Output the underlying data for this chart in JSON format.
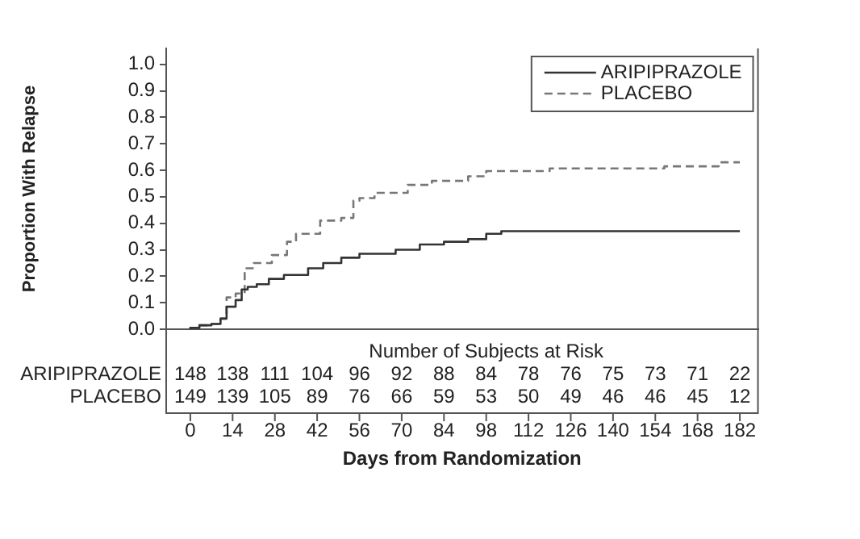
{
  "chart_data": {
    "type": "step",
    "xlabel": "Days from Randomization",
    "ylabel": "Proportion With Relapse",
    "xlim": [
      -8,
      188
    ],
    "xticks": [
      0,
      14,
      28,
      42,
      56,
      70,
      84,
      98,
      112,
      126,
      140,
      154,
      168,
      182
    ],
    "ylim": [
      0,
      1.06
    ],
    "yticks": [
      {
        "value": 0,
        "label": "0.0"
      },
      {
        "value": 0.1,
        "label": "0.1"
      },
      {
        "value": 0.2,
        "label": "0.2"
      },
      {
        "value": 0.3,
        "label": "0.3"
      },
      {
        "value": 0.4,
        "label": "0.4"
      },
      {
        "value": 0.5,
        "label": "0.5"
      },
      {
        "value": 0.6,
        "label": "0.6"
      },
      {
        "value": 0.7,
        "label": "0.7"
      },
      {
        "value": 0.8,
        "label": "0.8"
      },
      {
        "value": 0.9,
        "label": "0.9"
      },
      {
        "value": 1,
        "label": "1.0"
      }
    ],
    "grid": false,
    "legend": "top right",
    "marker": "none",
    "series": [
      {
        "name": "ARIPIPRAZOLE",
        "color": "#333333",
        "line_style": "solid",
        "x": [
          0,
          3,
          7,
          10,
          12,
          15,
          17,
          19,
          22,
          26,
          31,
          39,
          44,
          50,
          56,
          68,
          76,
          84,
          92,
          98,
          103,
          140,
          182
        ],
        "values": [
          0,
          0.005,
          0.015,
          0.02,
          0.04,
          0.085,
          0.11,
          0.15,
          0.16,
          0.17,
          0.19,
          0.205,
          0.23,
          0.25,
          0.27,
          0.285,
          0.3,
          0.32,
          0.33,
          0.34,
          0.36,
          0.37,
          0.37
        ]
      },
      {
        "name": "PLACEBO",
        "color": "#777777",
        "line_style": "dashed",
        "x": [
          0,
          3,
          7,
          10,
          12,
          15,
          18,
          21,
          27,
          32,
          35,
          43,
          50,
          54,
          56,
          61,
          72,
          80,
          92,
          98,
          119,
          157,
          175,
          181,
          182
        ],
        "values": [
          0,
          0.005,
          0.015,
          0.02,
          0.04,
          0.12,
          0.135,
          0.23,
          0.25,
          0.28,
          0.33,
          0.36,
          0.41,
          0.42,
          0.485,
          0.495,
          0.515,
          0.545,
          0.56,
          0.577,
          0.597,
          0.607,
          0.615,
          0.63,
          0.63
        ]
      }
    ],
    "annotations": [
      "Number of Subjects at Risk",
      "ARIPIPRAZOLE",
      "148",
      "138",
      "111",
      "104",
      "96",
      "92",
      "88",
      "84",
      "78",
      "76",
      "75",
      "73",
      "71",
      "22",
      "PLACEBO",
      "149",
      "139",
      "105",
      "89",
      "76",
      "66",
      "59",
      "53",
      "50",
      "49",
      "46",
      "46",
      "45",
      "12"
    ]
  }
}
